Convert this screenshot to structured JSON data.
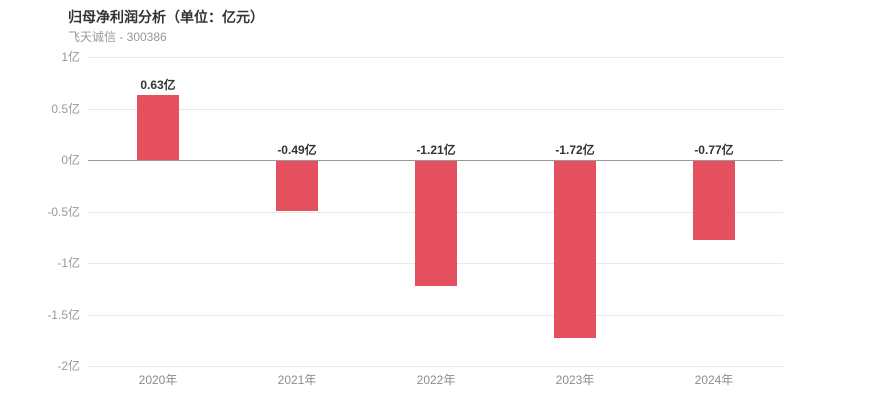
{
  "header": {
    "title": "归母净利润分析（单位：亿元）",
    "subtitle": "飞天诚信 - 300386"
  },
  "colors": {
    "bar": "#e5505e",
    "grid": "#e8e8e8",
    "zero_line": "#999999",
    "title_text": "#333333",
    "axis_text": "#999999",
    "value_label_text": "#333333",
    "background": "#ffffff"
  },
  "chart_data": {
    "type": "bar",
    "title": "归母净利润分析（单位：亿元）",
    "subtitle": "飞天诚信 - 300386",
    "categories": [
      "2020年",
      "2021年",
      "2022年",
      "2023年",
      "2024年"
    ],
    "values": [
      0.63,
      -0.49,
      -1.21,
      -1.72,
      -0.77
    ],
    "value_labels": [
      "0.63亿",
      "-0.49亿",
      "-1.21亿",
      "-1.72亿",
      "-0.77亿"
    ],
    "xlabel": "",
    "ylabel": "",
    "ylim": [
      -2,
      1
    ],
    "y_ticks": [
      {
        "value": 1,
        "label": "1亿"
      },
      {
        "value": 0.5,
        "label": "0.5亿"
      },
      {
        "value": 0,
        "label": "0亿"
      },
      {
        "value": -0.5,
        "label": "-0.5亿"
      },
      {
        "value": -1,
        "label": "-1亿"
      },
      {
        "value": -1.5,
        "label": "-1.5亿"
      },
      {
        "value": -2,
        "label": "-2亿"
      }
    ],
    "grid": true,
    "legend": "none",
    "bar_color": "#e5505e"
  }
}
